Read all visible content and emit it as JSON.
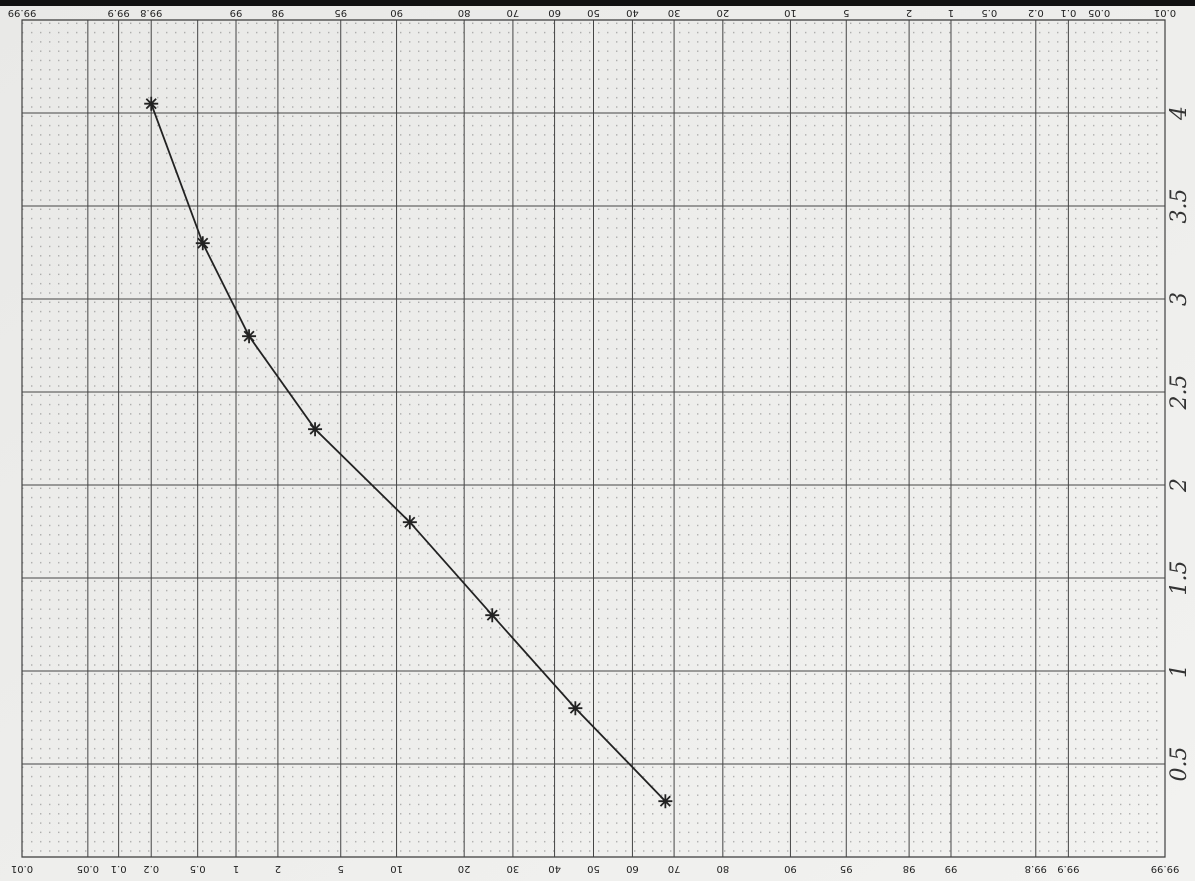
{
  "chart_data": {
    "type": "line",
    "xscale": "probability",
    "x": [
      0.2,
      0.55,
      1.25,
      3.5,
      11.6,
      25.5,
      45.3,
      68
    ],
    "values": [
      4.05,
      3.3,
      2.8,
      2.3,
      1.8,
      1.3,
      0.8,
      0.3
    ],
    "color": "#222222",
    "xlim": [
      0.01,
      99.99
    ],
    "xticks": [
      0.01,
      0.05,
      0.1,
      0.2,
      0.5,
      1,
      2,
      5,
      10,
      20,
      30,
      40,
      50,
      60,
      70,
      80,
      90,
      95,
      98,
      99,
      99.8,
      99.9,
      99.99
    ],
    "x2ticks": [
      0.01,
      0.05,
      0.1,
      0.2,
      0.5,
      1,
      2,
      5,
      10,
      20,
      30,
      40,
      50,
      60,
      70,
      80,
      90,
      95,
      98,
      99,
      99.8,
      99.9,
      99.99
    ],
    "ylim": [
      0,
      4.5
    ],
    "yticks": [
      0.5,
      1,
      1.5,
      2,
      2.5,
      3,
      3.5,
      4
    ],
    "grid": true
  }
}
